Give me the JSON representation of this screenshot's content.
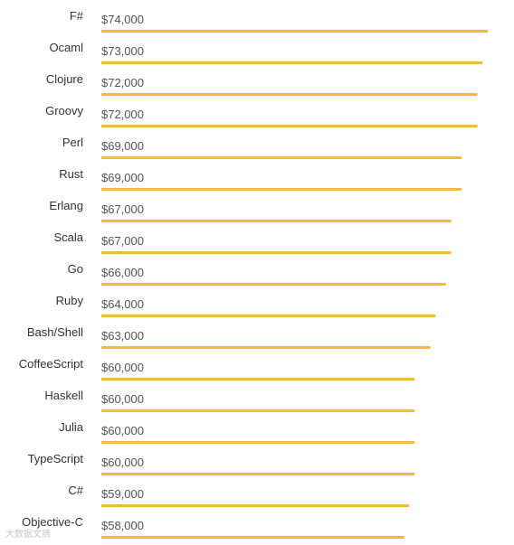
{
  "chart_data": {
    "type": "bar",
    "orientation": "horizontal",
    "title": "",
    "xlabel": "",
    "ylabel": "",
    "categories": [
      "F#",
      "Ocaml",
      "Clojure",
      "Groovy",
      "Perl",
      "Rust",
      "Erlang",
      "Scala",
      "Go",
      "Ruby",
      "Bash/Shell",
      "CoffeeScript",
      "Haskell",
      "Julia",
      "TypeScript",
      "C#",
      "Objective-C"
    ],
    "values": [
      74000,
      73000,
      72000,
      72000,
      69000,
      69000,
      67000,
      67000,
      66000,
      64000,
      63000,
      60000,
      60000,
      60000,
      60000,
      59000,
      58000
    ],
    "value_labels": [
      "$74,000",
      "$73,000",
      "$72,000",
      "$72,000",
      "$69,000",
      "$69,000",
      "$67,000",
      "$67,000",
      "$66,000",
      "$64,000",
      "$63,000",
      "$60,000",
      "$60,000",
      "$60,000",
      "$60,000",
      "$59,000",
      "$58,000"
    ],
    "xlim": [
      0,
      74000
    ],
    "grid": false,
    "bar_color": "#f4bb3a"
  },
  "watermark": {
    "text": "大数据文摘"
  }
}
